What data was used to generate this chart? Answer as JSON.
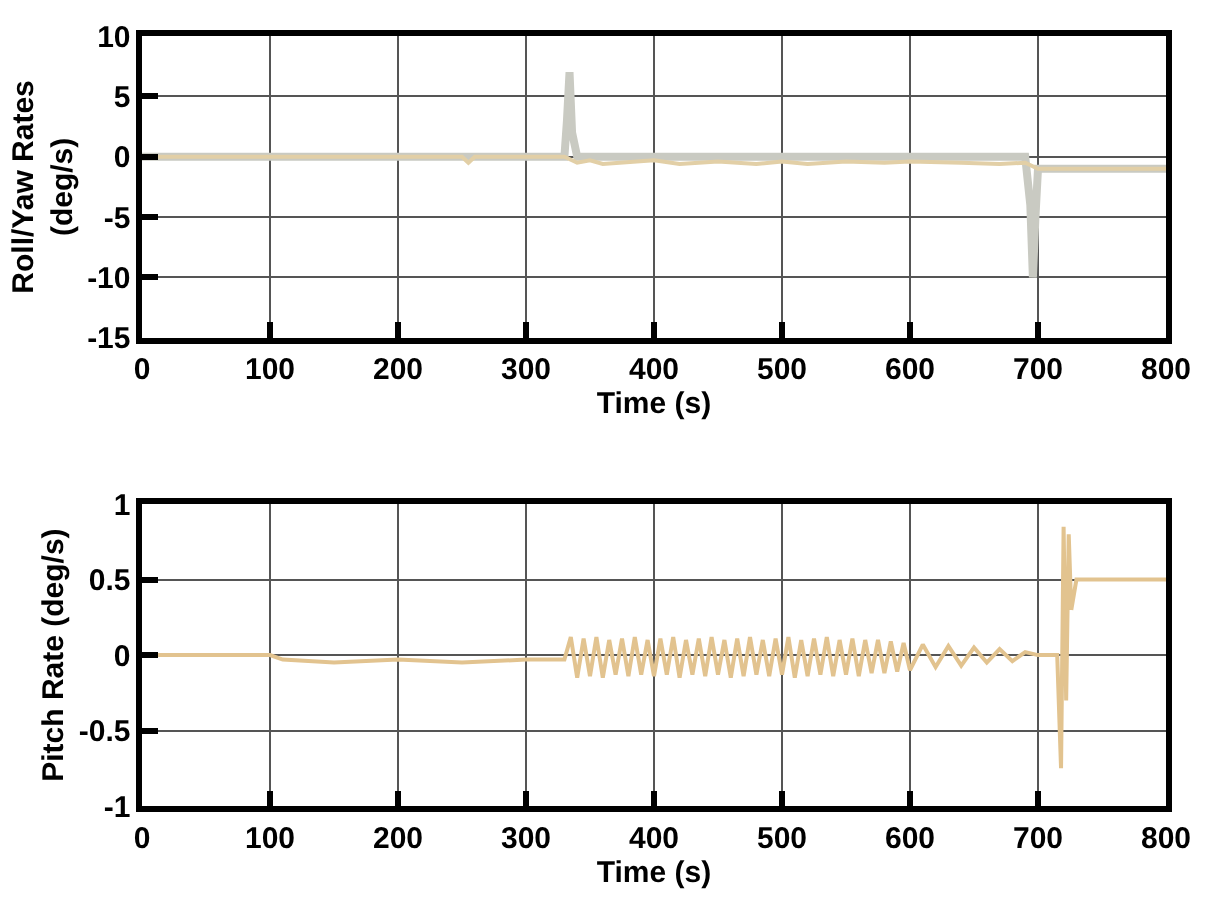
{
  "chart_data": [
    {
      "type": "line",
      "xlabel": "Time (s)",
      "ylabel": "Roll/Yaw Rates (deg/s)",
      "xlim": [
        0,
        800
      ],
      "xticks": [
        0,
        100,
        200,
        300,
        400,
        500,
        600,
        700,
        800
      ],
      "ylim": [
        -15,
        10
      ],
      "yticks": [
        -15,
        -10,
        -5,
        0,
        5,
        10
      ],
      "grid": true,
      "marker": "none",
      "line_style": "solid",
      "series": [
        {
          "color": "#e2cfa6",
          "x": [
            0,
            250,
            255,
            260,
            300,
            330,
            340,
            350,
            360,
            400,
            420,
            450,
            480,
            500,
            520,
            550,
            580,
            600,
            640,
            670,
            690,
            700,
            710,
            800
          ],
          "values": [
            0,
            0,
            -0.5,
            0,
            0,
            0,
            -0.5,
            -0.3,
            -0.6,
            -0.3,
            -0.6,
            -0.4,
            -0.6,
            -0.4,
            -0.6,
            -0.4,
            -0.5,
            -0.4,
            -0.5,
            -0.6,
            -0.5,
            -1,
            -1,
            -1
          ]
        },
        {
          "color": "#c9cac2",
          "x": [
            0,
            330,
            332,
            334,
            336,
            340,
            690,
            694,
            696,
            698,
            700,
            704,
            800
          ],
          "values": [
            0,
            0,
            3,
            7,
            2,
            0,
            0,
            -4,
            -10,
            -5,
            -1,
            -1,
            -1
          ]
        }
      ]
    },
    {
      "type": "line",
      "xlabel": "Time (s)",
      "ylabel": "Pitch Rate (deg/s)",
      "xlim": [
        0,
        800
      ],
      "xticks": [
        0,
        100,
        200,
        300,
        400,
        500,
        600,
        700,
        800
      ],
      "ylim": [
        -1,
        1
      ],
      "yticks": [
        -1,
        -0.5,
        0,
        0.5,
        1
      ],
      "grid": true,
      "marker": "none",
      "line_style": "solid",
      "series": [
        {
          "color": "#e2c38f",
          "x": [
            0,
            100,
            110,
            150,
            200,
            250,
            300,
            330,
            335,
            340,
            345,
            350,
            355,
            360,
            365,
            370,
            375,
            380,
            385,
            390,
            395,
            400,
            405,
            410,
            415,
            420,
            425,
            430,
            435,
            440,
            445,
            450,
            455,
            460,
            465,
            470,
            475,
            480,
            485,
            490,
            495,
            500,
            505,
            510,
            515,
            520,
            525,
            530,
            535,
            540,
            545,
            550,
            555,
            560,
            565,
            570,
            575,
            580,
            585,
            590,
            595,
            600,
            610,
            620,
            630,
            640,
            650,
            660,
            670,
            680,
            690,
            700,
            715,
            718,
            720,
            722,
            724,
            726,
            730,
            800
          ],
          "values": [
            0,
            0,
            -0.03,
            -0.05,
            -0.03,
            -0.05,
            -0.03,
            -0.03,
            0.12,
            -0.15,
            0.11,
            -0.14,
            0.12,
            -0.15,
            0.1,
            -0.13,
            0.11,
            -0.14,
            0.12,
            -0.13,
            0.1,
            -0.14,
            0.11,
            -0.13,
            0.12,
            -0.15,
            0.1,
            -0.13,
            0.11,
            -0.14,
            0.12,
            -0.13,
            0.1,
            -0.15,
            0.11,
            -0.14,
            0.12,
            -0.13,
            0.1,
            -0.14,
            0.11,
            -0.13,
            0.12,
            -0.15,
            0.1,
            -0.14,
            0.11,
            -0.13,
            0.12,
            -0.14,
            0.1,
            -0.13,
            0.11,
            -0.14,
            0.1,
            -0.12,
            0.1,
            -0.12,
            0.09,
            -0.11,
            0.08,
            -0.1,
            0.07,
            -0.08,
            0.06,
            -0.07,
            0.05,
            -0.05,
            0.04,
            -0.04,
            0.02,
            0,
            0,
            -0.75,
            0.85,
            -0.3,
            0.8,
            0.3,
            0.5,
            0.5
          ]
        }
      ]
    }
  ]
}
